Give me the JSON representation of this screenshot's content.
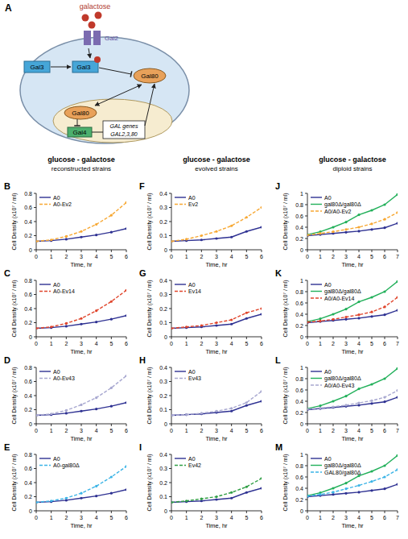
{
  "diagram": {
    "label": "A",
    "ligand": "galactose",
    "transporter": "Gal2",
    "cytoplasm": {
      "gal3_free": "Gal3",
      "gal3_bound": "Gal3",
      "gal80": "Gal80"
    },
    "nucleus": {
      "gal80": "Gal80",
      "gal4": "Gal4",
      "genes": "GAL genes",
      "gene_list": "GAL2,3,80"
    }
  },
  "columns": [
    {
      "title": "glucose - galactose",
      "subtitle": "reconstructed strains"
    },
    {
      "title": "glucose - galactose",
      "subtitle": "evolved strains"
    },
    {
      "title": "glucose - galactose",
      "subtitle": "diploid strains"
    }
  ],
  "chart_data": [
    {
      "type": "line",
      "panel_label": "B",
      "xlabel": "Time, hr",
      "ylabel": "Cell Density (x10⁷ / ml)",
      "x": [
        0,
        1,
        2,
        3,
        4,
        5,
        6
      ],
      "xlim": [
        0,
        6
      ],
      "xticks": [
        0,
        1,
        2,
        3,
        4,
        5,
        6
      ],
      "ylim": [
        0,
        0.8
      ],
      "yticks": [
        0,
        0.2,
        0.4,
        0.6,
        0.8
      ],
      "grid": false,
      "legend": "upper left",
      "series": [
        {
          "name": "A0",
          "color": "#2e3192",
          "line_style": "solid",
          "marker": "circle",
          "values": [
            0.12,
            0.13,
            0.15,
            0.18,
            0.21,
            0.25,
            0.3
          ]
        },
        {
          "name": "A0-Ev2",
          "color": "#f7a833",
          "line_style": "dashed",
          "marker": "circle",
          "values": [
            0.12,
            0.14,
            0.19,
            0.26,
            0.36,
            0.49,
            0.67
          ]
        }
      ]
    },
    {
      "type": "line",
      "panel_label": "C",
      "xlabel": "Time, hr",
      "ylabel": "Cell Density (x10⁷ / ml)",
      "x": [
        0,
        1,
        2,
        3,
        4,
        5,
        6
      ],
      "xlim": [
        0,
        6
      ],
      "xticks": [
        0,
        1,
        2,
        3,
        4,
        5,
        6
      ],
      "ylim": [
        0,
        0.8
      ],
      "yticks": [
        0,
        0.2,
        0.4,
        0.6,
        0.8
      ],
      "grid": false,
      "legend": "upper left",
      "series": [
        {
          "name": "A0",
          "color": "#2e3192",
          "line_style": "solid",
          "marker": "circle",
          "values": [
            0.12,
            0.13,
            0.15,
            0.18,
            0.21,
            0.25,
            0.3
          ]
        },
        {
          "name": "A0-Ev14",
          "color": "#e0452c",
          "line_style": "dashed",
          "marker": "circle",
          "values": [
            0.12,
            0.14,
            0.19,
            0.26,
            0.37,
            0.5,
            0.66
          ]
        }
      ]
    },
    {
      "type": "line",
      "panel_label": "D",
      "xlabel": "Time, hr",
      "ylabel": "Cell Density (x10⁷ / ml)",
      "x": [
        0,
        1,
        2,
        3,
        4,
        5,
        6
      ],
      "xlim": [
        0,
        6
      ],
      "xticks": [
        0,
        1,
        2,
        3,
        4,
        5,
        6
      ],
      "ylim": [
        0,
        0.8
      ],
      "yticks": [
        0,
        0.2,
        0.4,
        0.6,
        0.8
      ],
      "grid": false,
      "legend": "upper left",
      "series": [
        {
          "name": "A0",
          "color": "#2e3192",
          "line_style": "solid",
          "marker": "circle",
          "values": [
            0.12,
            0.13,
            0.15,
            0.18,
            0.21,
            0.25,
            0.3
          ]
        },
        {
          "name": "A0-Ev43",
          "color": "#a8a8d0",
          "line_style": "dashed",
          "marker": "circle",
          "values": [
            0.12,
            0.14,
            0.19,
            0.27,
            0.37,
            0.51,
            0.68
          ]
        }
      ]
    },
    {
      "type": "line",
      "panel_label": "E",
      "xlabel": "Time, hr",
      "ylabel": "Cell Density (x10⁷ / ml)",
      "x": [
        0,
        1,
        2,
        3,
        4,
        5,
        6
      ],
      "xlim": [
        0,
        6
      ],
      "xticks": [
        0,
        1,
        2,
        3,
        4,
        5,
        6
      ],
      "ylim": [
        0,
        0.8
      ],
      "yticks": [
        0,
        0.2,
        0.4,
        0.6,
        0.8
      ],
      "grid": false,
      "legend": "upper left",
      "series": [
        {
          "name": "A0",
          "color": "#2e3192",
          "line_style": "solid",
          "marker": "circle",
          "values": [
            0.12,
            0.13,
            0.15,
            0.18,
            0.21,
            0.25,
            0.3
          ]
        },
        {
          "name": "A0-gal80Δ",
          "color": "#3bb4e6",
          "line_style": "dashed",
          "marker": "circle",
          "values": [
            0.12,
            0.14,
            0.18,
            0.25,
            0.35,
            0.48,
            0.63
          ]
        }
      ]
    },
    {
      "type": "line",
      "panel_label": "F",
      "xlabel": "Time, hr",
      "ylabel": "Cell Density (x10⁷ / ml)",
      "x": [
        0,
        1,
        2,
        3,
        4,
        5,
        6
      ],
      "xlim": [
        0,
        6
      ],
      "xticks": [
        0,
        1,
        2,
        3,
        4,
        5,
        6
      ],
      "ylim": [
        0,
        0.4
      ],
      "yticks": [
        0,
        0.1,
        0.2,
        0.3,
        0.4
      ],
      "grid": false,
      "legend": "upper left",
      "series": [
        {
          "name": "A0",
          "color": "#2e3192",
          "line_style": "solid",
          "marker": "circle",
          "values": [
            0.06,
            0.065,
            0.07,
            0.08,
            0.09,
            0.13,
            0.16
          ]
        },
        {
          "name": "Ev2",
          "color": "#f7a833",
          "line_style": "dashed",
          "marker": "circle",
          "values": [
            0.06,
            0.075,
            0.1,
            0.13,
            0.17,
            0.23,
            0.3
          ]
        }
      ]
    },
    {
      "type": "line",
      "panel_label": "G",
      "xlabel": "Time, hr",
      "ylabel": "Cell Density (x10⁷ / ml)",
      "x": [
        0,
        1,
        2,
        3,
        4,
        5,
        6
      ],
      "xlim": [
        0,
        6
      ],
      "xticks": [
        0,
        1,
        2,
        3,
        4,
        5,
        6
      ],
      "ylim": [
        0,
        0.4
      ],
      "yticks": [
        0,
        0.1,
        0.2,
        0.3,
        0.4
      ],
      "grid": false,
      "legend": "upper left",
      "series": [
        {
          "name": "A0",
          "color": "#2e3192",
          "line_style": "solid",
          "marker": "circle",
          "values": [
            0.06,
            0.065,
            0.07,
            0.08,
            0.09,
            0.13,
            0.16
          ]
        },
        {
          "name": "Ev14",
          "color": "#e0452c",
          "line_style": "dashed",
          "marker": "circle",
          "values": [
            0.06,
            0.07,
            0.08,
            0.1,
            0.12,
            0.17,
            0.2
          ]
        }
      ]
    },
    {
      "type": "line",
      "panel_label": "H",
      "xlabel": "Time, hr",
      "ylabel": "Cell Density (x10⁷ / ml)",
      "x": [
        0,
        1,
        2,
        3,
        4,
        5,
        6
      ],
      "xlim": [
        0,
        6
      ],
      "xticks": [
        0,
        1,
        2,
        3,
        4,
        5,
        6
      ],
      "ylim": [
        0,
        0.4
      ],
      "yticks": [
        0,
        0.1,
        0.2,
        0.3,
        0.4
      ],
      "grid": false,
      "legend": "upper left",
      "series": [
        {
          "name": "A0",
          "color": "#2e3192",
          "line_style": "solid",
          "marker": "circle",
          "values": [
            0.06,
            0.065,
            0.07,
            0.08,
            0.09,
            0.13,
            0.16
          ]
        },
        {
          "name": "Ev43",
          "color": "#a8a8d0",
          "line_style": "dashed",
          "marker": "circle",
          "values": [
            0.06,
            0.065,
            0.075,
            0.09,
            0.11,
            0.15,
            0.23
          ]
        }
      ]
    },
    {
      "type": "line",
      "panel_label": "I",
      "xlabel": "Time, hr",
      "ylabel": "Cell Density (x10⁷ / ml)",
      "x": [
        0,
        1,
        2,
        3,
        4,
        5,
        6
      ],
      "xlim": [
        0,
        6
      ],
      "xticks": [
        0,
        1,
        2,
        3,
        4,
        5,
        6
      ],
      "ylim": [
        0,
        0.4
      ],
      "yticks": [
        0,
        0.1,
        0.2,
        0.3,
        0.4
      ],
      "grid": false,
      "legend": "upper left",
      "series": [
        {
          "name": "A0",
          "color": "#2e3192",
          "line_style": "solid",
          "marker": "circle",
          "values": [
            0.06,
            0.065,
            0.07,
            0.08,
            0.09,
            0.13,
            0.16
          ]
        },
        {
          "name": "Ev42",
          "color": "#2f9e44",
          "line_style": "dashed",
          "marker": "circle",
          "values": [
            0.06,
            0.07,
            0.085,
            0.1,
            0.13,
            0.17,
            0.23
          ]
        }
      ]
    },
    {
      "type": "line",
      "panel_label": "J",
      "xlabel": "Time, hr",
      "ylabel": "Cell Density (x10⁷ / ml)",
      "x": [
        0,
        1,
        2,
        3,
        4,
        5,
        6,
        7
      ],
      "xlim": [
        0,
        7
      ],
      "xticks": [
        0,
        1,
        2,
        3,
        4,
        5,
        6,
        7
      ],
      "ylim": [
        0,
        1
      ],
      "yticks": [
        0,
        0.2,
        0.4,
        0.6,
        0.8,
        1
      ],
      "grid": false,
      "legend": "upper left",
      "series": [
        {
          "name": "A0",
          "color": "#2e3192",
          "line_style": "solid",
          "marker": "circle",
          "values": [
            0.25,
            0.27,
            0.29,
            0.31,
            0.33,
            0.36,
            0.39,
            0.47
          ]
        },
        {
          "name": "gal80Δ/gal80Δ",
          "color": "#22b05a",
          "line_style": "solid",
          "marker": "circle",
          "values": [
            0.27,
            0.32,
            0.4,
            0.49,
            0.62,
            0.7,
            0.8,
            0.98
          ]
        },
        {
          "name": "A0/A0-Ev2",
          "color": "#f7a833",
          "line_style": "dashed",
          "marker": "circle",
          "values": [
            0.26,
            0.29,
            0.32,
            0.36,
            0.4,
            0.46,
            0.54,
            0.66
          ]
        }
      ]
    },
    {
      "type": "line",
      "panel_label": "K",
      "xlabel": "Time, hr",
      "ylabel": "Cell Density (x10⁷ / ml)",
      "x": [
        0,
        1,
        2,
        3,
        4,
        5,
        6,
        7
      ],
      "xlim": [
        0,
        7
      ],
      "xticks": [
        0,
        1,
        2,
        3,
        4,
        5,
        6,
        7
      ],
      "ylim": [
        0,
        1
      ],
      "yticks": [
        0,
        0.2,
        0.4,
        0.6,
        0.8,
        1
      ],
      "grid": false,
      "legend": "upper left",
      "series": [
        {
          "name": "A0",
          "color": "#2e3192",
          "line_style": "solid",
          "marker": "circle",
          "values": [
            0.25,
            0.27,
            0.29,
            0.31,
            0.33,
            0.36,
            0.39,
            0.47
          ]
        },
        {
          "name": "gal80Δ/gal80Δ",
          "color": "#22b05a",
          "line_style": "solid",
          "marker": "circle",
          "values": [
            0.27,
            0.32,
            0.4,
            0.49,
            0.62,
            0.7,
            0.8,
            0.98
          ]
        },
        {
          "name": "A0/A0-Ev14",
          "color": "#e0452c",
          "line_style": "dashed",
          "marker": "circle",
          "values": [
            0.26,
            0.28,
            0.31,
            0.35,
            0.39,
            0.44,
            0.53,
            0.7
          ]
        }
      ]
    },
    {
      "type": "line",
      "panel_label": "L",
      "xlabel": "Time, hr",
      "ylabel": "Cell Density (x10⁷ / ml)",
      "x": [
        0,
        1,
        2,
        3,
        4,
        5,
        6,
        7
      ],
      "xlim": [
        0,
        7
      ],
      "xticks": [
        0,
        1,
        2,
        3,
        4,
        5,
        6,
        7
      ],
      "ylim": [
        0,
        1
      ],
      "yticks": [
        0,
        0.2,
        0.4,
        0.6,
        0.8,
        1
      ],
      "grid": false,
      "legend": "upper left",
      "series": [
        {
          "name": "A0",
          "color": "#2e3192",
          "line_style": "solid",
          "marker": "circle",
          "values": [
            0.25,
            0.27,
            0.29,
            0.31,
            0.33,
            0.36,
            0.39,
            0.47
          ]
        },
        {
          "name": "gal80Δ/gal80Δ",
          "color": "#22b05a",
          "line_style": "solid",
          "marker": "circle",
          "values": [
            0.27,
            0.32,
            0.4,
            0.49,
            0.62,
            0.7,
            0.8,
            0.98
          ]
        },
        {
          "name": "A0/A0-Ev43",
          "color": "#a8a8d0",
          "line_style": "dashed",
          "marker": "circle",
          "values": [
            0.26,
            0.28,
            0.3,
            0.33,
            0.37,
            0.41,
            0.47,
            0.59
          ]
        }
      ]
    },
    {
      "type": "line",
      "panel_label": "M",
      "xlabel": "Time, hr",
      "ylabel": "Cell Density (x10⁷ / ml)",
      "x": [
        0,
        1,
        2,
        3,
        4,
        5,
        6,
        7
      ],
      "xlim": [
        0,
        7
      ],
      "xticks": [
        0,
        1,
        2,
        3,
        4,
        5,
        6,
        7
      ],
      "ylim": [
        0,
        1
      ],
      "yticks": [
        0,
        0.2,
        0.4,
        0.6,
        0.8,
        1
      ],
      "grid": false,
      "legend": "upper left",
      "series": [
        {
          "name": "A0",
          "color": "#2e3192",
          "line_style": "solid",
          "marker": "circle",
          "values": [
            0.25,
            0.27,
            0.29,
            0.31,
            0.33,
            0.36,
            0.39,
            0.47
          ]
        },
        {
          "name": "gal80Δ/gal80Δ",
          "color": "#22b05a",
          "line_style": "solid",
          "marker": "circle",
          "values": [
            0.27,
            0.32,
            0.4,
            0.49,
            0.62,
            0.7,
            0.8,
            0.98
          ]
        },
        {
          "name": "GAL80/gal80Δ",
          "color": "#3bb4e6",
          "line_style": "dashed",
          "marker": "circle",
          "values": [
            0.26,
            0.29,
            0.33,
            0.39,
            0.45,
            0.52,
            0.6,
            0.73
          ]
        }
      ]
    }
  ]
}
